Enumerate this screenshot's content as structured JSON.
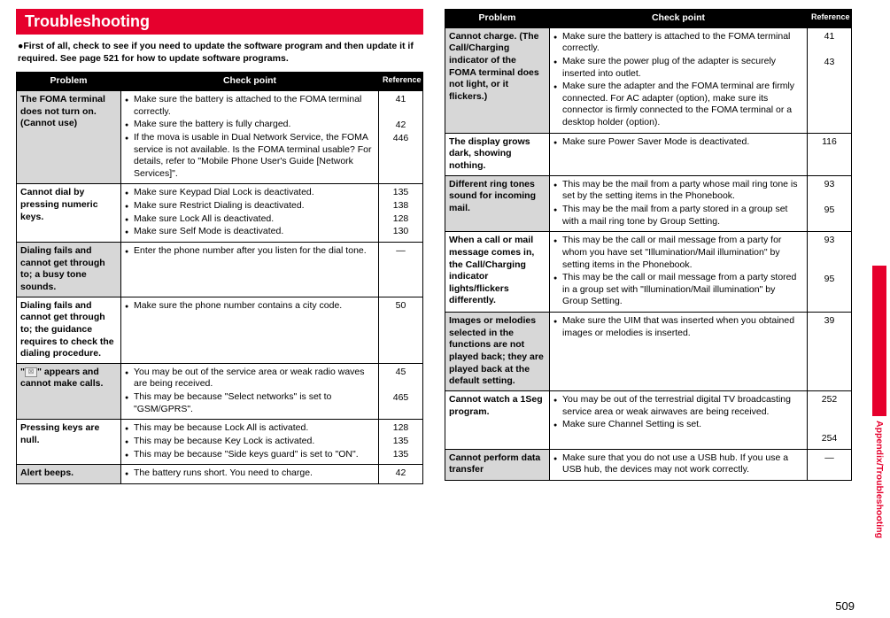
{
  "title": "Troubleshooting",
  "intro": "●First of all, check to see if you need to update the software program and then update it if required. See page 521 for how to update software programs.",
  "headers": {
    "problem": "Problem",
    "check": "Check point",
    "ref": "Reference"
  },
  "side_label": "Appendix/Troubleshooting",
  "page_number": "509",
  "left_rows": [
    {
      "shaded": true,
      "problem": "The FOMA terminal does not turn on. (Cannot use)",
      "checks": [
        "Make sure the battery is attached to the FOMA terminal correctly.",
        "Make sure the battery is fully charged.",
        "If the mova is usable in Dual Network Service, the FOMA service is not available. Is the FOMA terminal usable? For details, refer to \"Mobile Phone User's Guide [Network Services]\"."
      ],
      "refs": [
        "41",
        "",
        "42",
        "446"
      ]
    },
    {
      "shaded": false,
      "problem": "Cannot dial by pressing numeric keys.",
      "checks": [
        "Make sure Keypad Dial Lock is deactivated.",
        "Make sure Restrict Dialing is deactivated.",
        "Make sure Lock All is deactivated.",
        "Make sure Self Mode is deactivated."
      ],
      "refs": [
        "135",
        "138",
        "128",
        "130"
      ]
    },
    {
      "shaded": true,
      "problem": "Dialing fails and cannot get through to; a busy tone sounds.",
      "checks": [
        "Enter the phone number after you listen for the dial tone."
      ],
      "refs": [
        "—"
      ]
    },
    {
      "shaded": false,
      "problem": "Dialing fails and cannot get through to; the guidance requires to check the dialing procedure.",
      "checks": [
        "Make sure the phone number contains a city code."
      ],
      "refs": [
        "50"
      ]
    },
    {
      "shaded": true,
      "problem_html": "\"<span class='icon-box' data-name='signal-icon' data-interactable='false'>☒</span>\" appears and cannot make calls.",
      "checks": [
        "You may be out of the service area or weak radio waves are being received.",
        "This may be because \"Select networks\" is set to \"GSM/GPRS\"."
      ],
      "refs": [
        "45",
        "",
        "465"
      ]
    },
    {
      "shaded": false,
      "problem": "Pressing keys are null.",
      "checks": [
        "This may be because Lock All is activated.",
        "This may be because Key Lock is activated.",
        "This may be because \"Side keys guard\" is set to \"ON\"."
      ],
      "refs": [
        "128",
        "135",
        "135"
      ]
    },
    {
      "shaded": true,
      "problem": "Alert beeps.",
      "checks": [
        "The battery runs short. You need to charge."
      ],
      "refs": [
        "42"
      ]
    }
  ],
  "right_rows": [
    {
      "shaded": true,
      "problem": "Cannot charge. (The Call/Charging indicator of the FOMA terminal does not light, or it flickers.)",
      "checks": [
        "Make sure the battery is attached to the FOMA terminal correctly.",
        "Make sure the power plug of the adapter is securely inserted into outlet.",
        "Make sure the adapter and the FOMA terminal are firmly connected. For AC adapter (option), make sure its connector is firmly connected to the FOMA terminal or a desktop holder (option)."
      ],
      "refs": [
        "41",
        "",
        "43"
      ]
    },
    {
      "shaded": false,
      "problem": "The display grows dark, showing nothing.",
      "checks": [
        "Make sure Power Saver Mode is deactivated."
      ],
      "refs": [
        "116"
      ]
    },
    {
      "shaded": true,
      "problem": "Different ring tones sound for incoming mail.",
      "checks": [
        "This may be the mail from a party whose mail ring tone is set by the setting items in the Phonebook.",
        "This may be the mail from a party stored in a group set with a mail ring tone by Group Setting."
      ],
      "refs": [
        "93",
        "",
        "95"
      ]
    },
    {
      "shaded": false,
      "problem": "When a call or mail message comes in, the Call/Charging indicator lights/flickers differently.",
      "checks": [
        "This may be the call or mail message from a party for whom you have set \"Illumination/Mail illumination\" by setting items in the Phonebook.",
        "This may be the call or mail message from a party stored in a group set with \"Illumination/Mail illumination\" by Group Setting."
      ],
      "refs": [
        "93",
        "",
        "",
        "95"
      ]
    },
    {
      "shaded": true,
      "problem": "Images or melodies selected in the functions are not played back; they are played back at the default setting.",
      "checks": [
        "Make sure the UIM that was inserted when you obtained images or melodies is inserted."
      ],
      "refs": [
        "39"
      ]
    },
    {
      "shaded": false,
      "problem": "Cannot watch a 1Seg program.",
      "checks": [
        "You may be out of the terrestrial digital TV broadcasting service area or weak airwaves are being received.",
        "Make sure Channel Setting is set."
      ],
      "refs": [
        "252",
        "",
        "",
        "254"
      ]
    },
    {
      "shaded": true,
      "problem": "Cannot perform data transfer",
      "checks": [
        "Make sure that you do not use a USB hub. If you use a USB hub, the devices may not work correctly."
      ],
      "refs": [
        "—"
      ]
    }
  ]
}
